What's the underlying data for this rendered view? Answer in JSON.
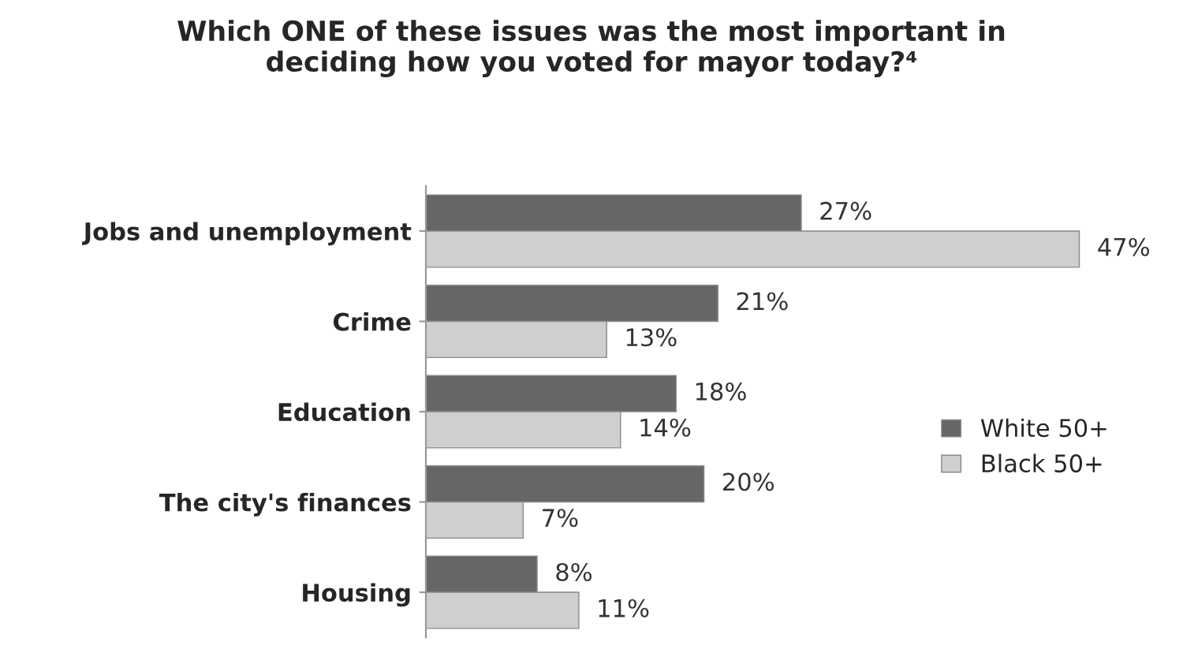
{
  "chart_data": {
    "type": "bar",
    "orientation": "horizontal",
    "title": "Which ONE of these issues was the most important in\ndeciding how you voted for mayor today?⁴",
    "categories": [
      "Jobs and unemployment",
      "Crime",
      "Education",
      "The city's finances",
      "Housing"
    ],
    "series": [
      {
        "name": "White 50+",
        "color": "#666666",
        "values": [
          27,
          21,
          18,
          20,
          8
        ],
        "value_labels": [
          "27%",
          "21%",
          "18%",
          "20%",
          "8%"
        ]
      },
      {
        "name": "Black 50+",
        "color": "#cfcfcf",
        "values": [
          47,
          13,
          14,
          7,
          11
        ],
        "value_labels": [
          "47%",
          "13%",
          "14%",
          "7%",
          "11%"
        ]
      }
    ],
    "legend": "right",
    "grid": false,
    "tick_labels": "y"
  }
}
